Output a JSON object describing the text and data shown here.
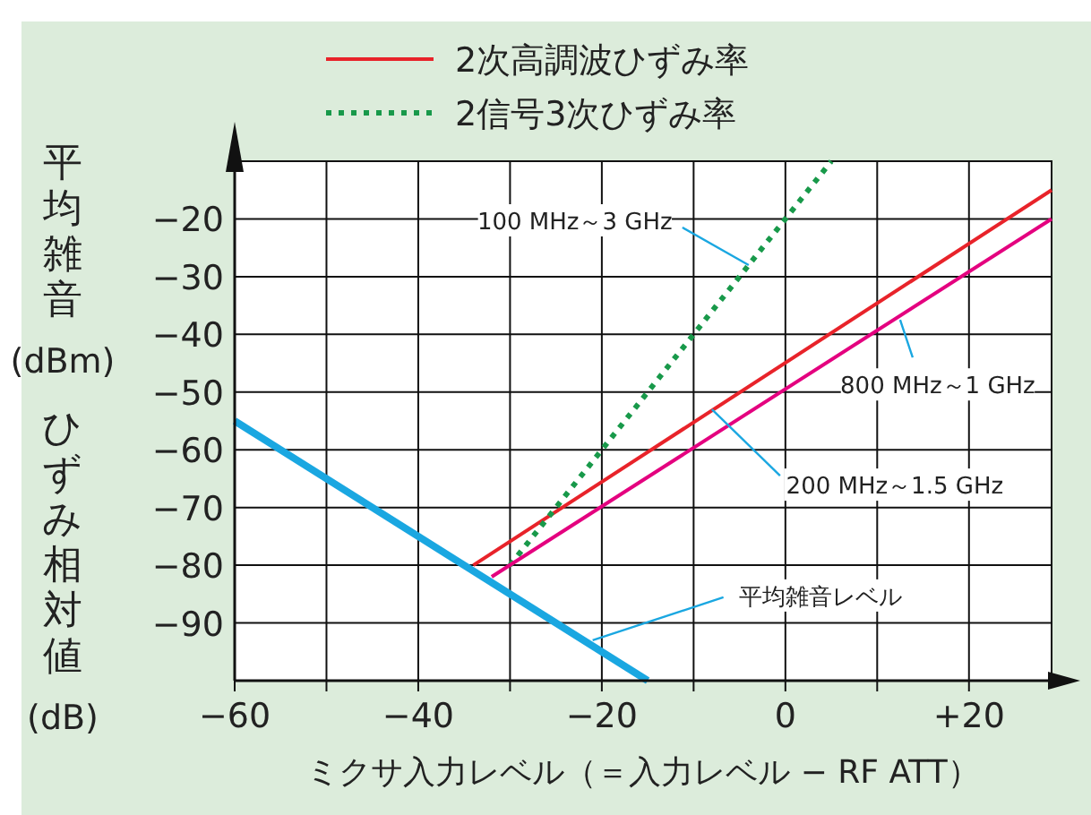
{
  "chart_data": {
    "type": "line",
    "xlabel": "ミクサ入力レベル（＝入力レベル − RF ATT）",
    "ylabel": "平均雑音(dBm)ひずみ相対値(dB)",
    "xlim": [
      -60,
      29
    ],
    "ylim": [
      -100,
      -10
    ],
    "xticks": [
      {
        "value": -60,
        "label": "−60"
      },
      {
        "value": -50,
        "label": null
      },
      {
        "value": -40,
        "label": "−40"
      },
      {
        "value": -30,
        "label": null
      },
      {
        "value": -20,
        "label": "−20"
      },
      {
        "value": -10,
        "label": null
      },
      {
        "value": 0,
        "label": "0"
      },
      {
        "value": 10,
        "label": null
      },
      {
        "value": 20,
        "label": "+20"
      }
    ],
    "yticks": [
      {
        "value": -20,
        "label": "−20"
      },
      {
        "value": -30,
        "label": "−30"
      },
      {
        "value": -40,
        "label": "−40"
      },
      {
        "value": -50,
        "label": "−50"
      },
      {
        "value": -60,
        "label": "−60"
      },
      {
        "value": -70,
        "label": "−70"
      },
      {
        "value": -80,
        "label": "−80"
      },
      {
        "value": -90,
        "label": "−90"
      }
    ],
    "grid": true,
    "legend": "top",
    "marker": "none",
    "series": [
      {
        "name": "2次高調波ひずみ率",
        "color": "#e8232a",
        "x": [
          -34,
          29
        ],
        "values": [
          -80,
          -15
        ],
        "line_style": "solid"
      },
      {
        "name": "2信号3次ひずみ率",
        "color": "#18994a",
        "x": [
          -30,
          5
        ],
        "values": [
          -80,
          -10
        ],
        "line_style": "dotted"
      },
      {
        "color": "#e4007f",
        "x": [
          -32,
          29
        ],
        "values": [
          -82,
          -20
        ],
        "line_style": "solid"
      },
      {
        "color": "#1aa7e1",
        "x": [
          -60,
          -15
        ],
        "values": [
          -55,
          -100
        ],
        "line_style": "solid"
      }
    ],
    "annotations": [
      {
        "text": "100 MHz～3 GHz",
        "x": -4,
        "y": -28
      },
      {
        "text": "800 MHz～1 GHz",
        "x": 12.5,
        "y": -37.5
      },
      {
        "text": "200 MHz～1.5 GHz",
        "x": -8,
        "y": -53
      },
      {
        "text": "平均雑音レベル",
        "x": -21,
        "y": -93
      }
    ]
  }
}
